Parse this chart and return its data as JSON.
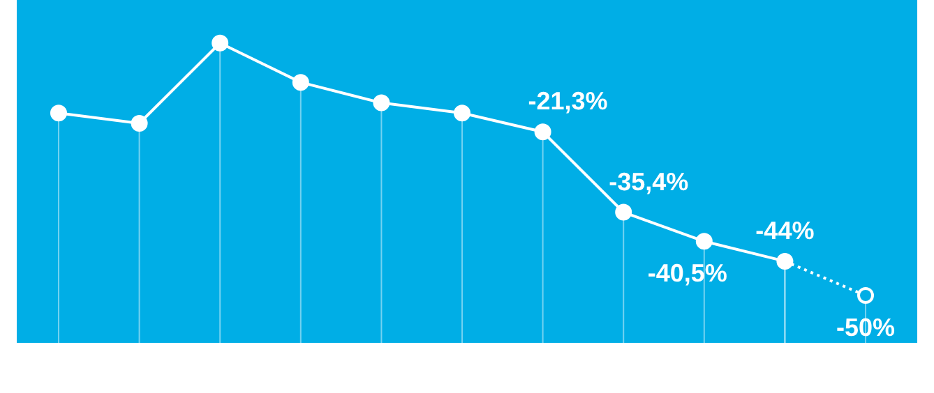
{
  "chart_data": {
    "type": "line",
    "categories": [
      null,
      null,
      null,
      null,
      null,
      null,
      null,
      null,
      null,
      null,
      null
    ],
    "marker": "circle",
    "legend": false,
    "grid": "x",
    "tick_labels": false,
    "series": [
      {
        "color": "#ffffff",
        "line_style": "solid",
        "values": [
          -18,
          -19.8,
          -5.7,
          -12.6,
          -16.2,
          -18,
          -21.3,
          -35.4,
          -40.5,
          -44,
          null
        ],
        "value_labels": [
          null,
          null,
          null,
          null,
          null,
          null,
          "-21,3%",
          "-35,4%",
          "-40,5%",
          "-44%",
          null
        ]
      },
      {
        "color": "#ffffff",
        "line_style": "dotted",
        "values": [
          null,
          null,
          null,
          null,
          null,
          null,
          null,
          null,
          null,
          -44,
          -50
        ],
        "value_labels": [
          null,
          null,
          null,
          null,
          null,
          null,
          null,
          null,
          null,
          null,
          "-50%"
        ]
      }
    ]
  }
}
